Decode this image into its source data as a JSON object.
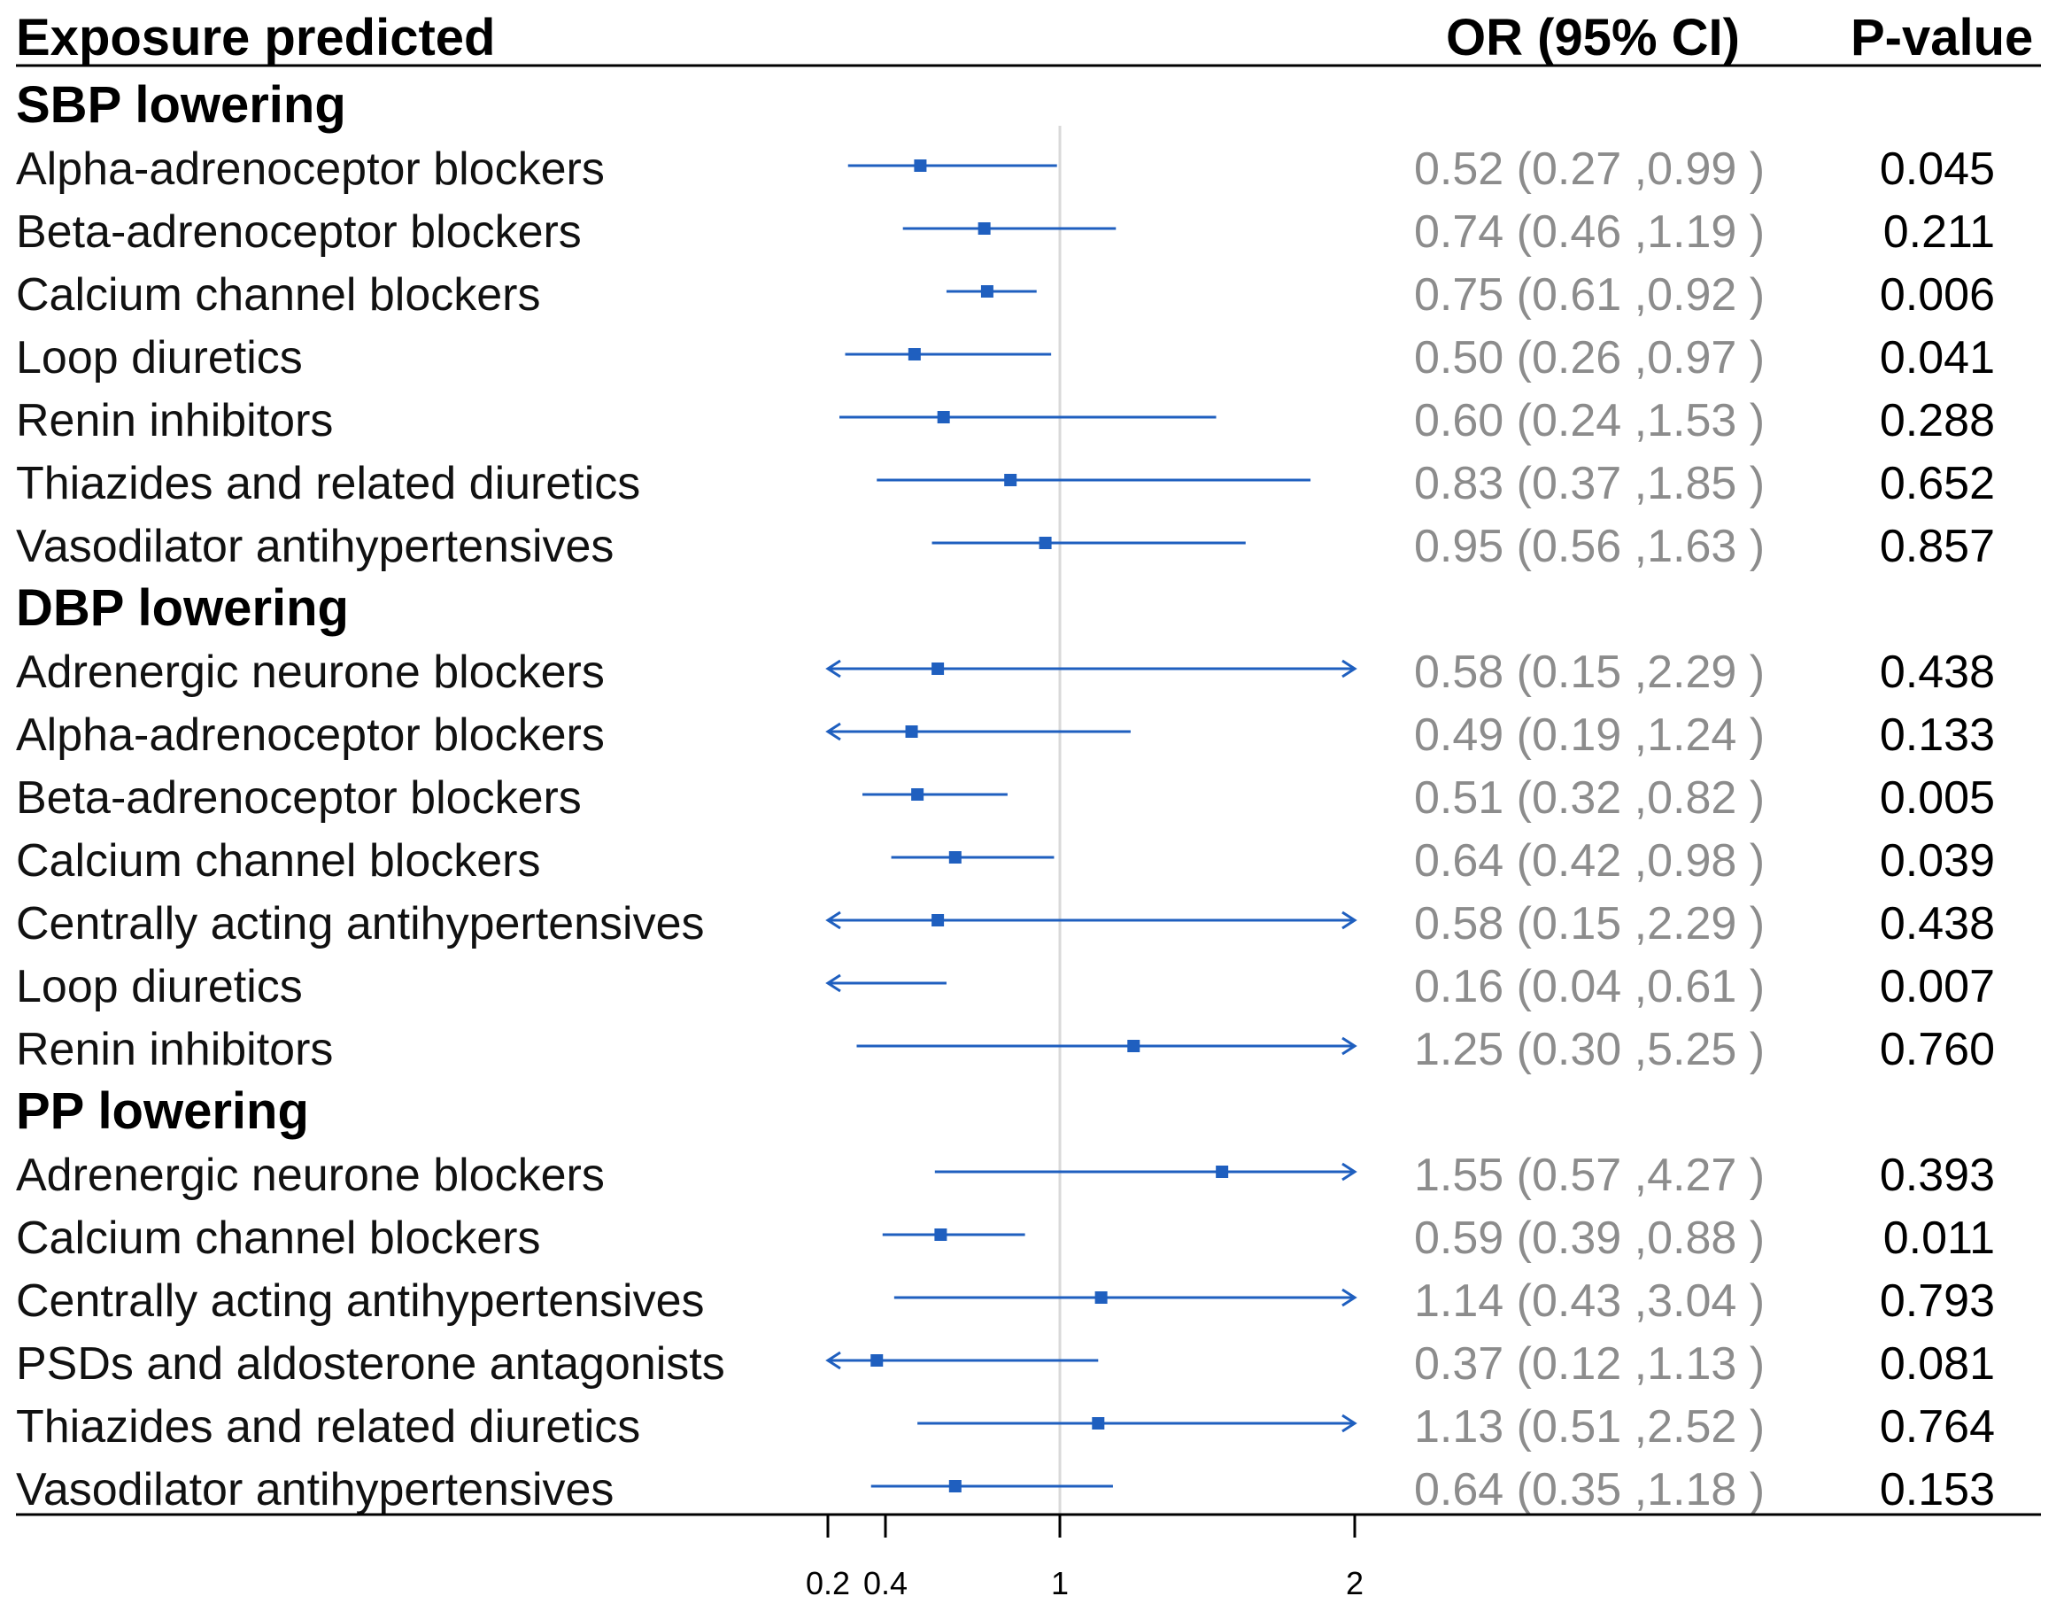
{
  "header": {
    "exposure": "Exposure predicted",
    "or": "OR (95% CI)",
    "p": "P-value"
  },
  "colors": {
    "marker": "#1f5fbf",
    "or_text": "#8c8c8c",
    "reference_line": "#d9d9d9",
    "rule": "#000000"
  },
  "chart_data": {
    "type": "forest",
    "title": "",
    "xlabel": "",
    "reference_value": 1,
    "xlim": [
      0.2,
      2
    ],
    "x_ticks": [
      0.2,
      0.4,
      1,
      2
    ],
    "x_tick_labels": [
      "0.2",
      "0.4",
      "1",
      "2"
    ],
    "groups": [
      {
        "name": "SBP lowering",
        "rows": [
          {
            "label": "Alpha-adrenoceptor blockers",
            "or": 0.52,
            "lo": 0.27,
            "hi": 0.99,
            "or_text": "0.52 (0.27 ,0.99 )",
            "p": "0.045"
          },
          {
            "label": "Beta-adrenoceptor blockers",
            "or": 0.74,
            "lo": 0.46,
            "hi": 1.19,
            "or_text": "0.74 (0.46 ,1.19 )",
            "p": "0.211"
          },
          {
            "label": "Calcium channel blockers",
            "or": 0.75,
            "lo": 0.61,
            "hi": 0.92,
            "or_text": "0.75 (0.61 ,0.92 )",
            "p": "0.006"
          },
          {
            "label": "Loop diuretics",
            "or": 0.5,
            "lo": 0.26,
            "hi": 0.97,
            "or_text": "0.50 (0.26 ,0.97 )",
            "p": "0.041"
          },
          {
            "label": "Renin inhibitors",
            "or": 0.6,
            "lo": 0.24,
            "hi": 1.53,
            "or_text": "0.60 (0.24 ,1.53 )",
            "p": "0.288"
          },
          {
            "label": "Thiazides and related diuretics",
            "or": 0.83,
            "lo": 0.37,
            "hi": 1.85,
            "or_text": "0.83 (0.37 ,1.85 )",
            "p": "0.652"
          },
          {
            "label": "Vasodilator antihypertensives",
            "or": 0.95,
            "lo": 0.56,
            "hi": 1.63,
            "or_text": "0.95 (0.56 ,1.63 )",
            "p": "0.857"
          }
        ]
      },
      {
        "name": "DBP lowering",
        "rows": [
          {
            "label": "Adrenergic neurone blockers",
            "or": 0.58,
            "lo": 0.15,
            "hi": 2.29,
            "or_text": "0.58 (0.15 ,2.29 )",
            "p": "0.438"
          },
          {
            "label": "Alpha-adrenoceptor blockers",
            "or": 0.49,
            "lo": 0.19,
            "hi": 1.24,
            "or_text": "0.49 (0.19 ,1.24 )",
            "p": "0.133"
          },
          {
            "label": "Beta-adrenoceptor blockers",
            "or": 0.51,
            "lo": 0.32,
            "hi": 0.82,
            "or_text": "0.51 (0.32 ,0.82 )",
            "p": "0.005"
          },
          {
            "label": "Calcium channel blockers",
            "or": 0.64,
            "lo": 0.42,
            "hi": 0.98,
            "or_text": "0.64 (0.42 ,0.98 )",
            "p": "0.039"
          },
          {
            "label": "Centrally acting antihypertensives",
            "or": 0.58,
            "lo": 0.15,
            "hi": 2.29,
            "or_text": "0.58 (0.15 ,2.29 )",
            "p": "0.438"
          },
          {
            "label": "Loop diuretics",
            "or": 0.16,
            "lo": 0.04,
            "hi": 0.61,
            "or_text": "0.16 (0.04 ,0.61 )",
            "p": "0.007"
          },
          {
            "label": "Renin inhibitors",
            "or": 1.25,
            "lo": 0.3,
            "hi": 5.25,
            "or_text": "1.25 (0.30 ,5.25 )",
            "p": "0.760"
          }
        ]
      },
      {
        "name": "PP lowering",
        "rows": [
          {
            "label": "Adrenergic neurone blockers",
            "or": 1.55,
            "lo": 0.57,
            "hi": 4.27,
            "or_text": "1.55 (0.57 ,4.27 )",
            "p": "0.393"
          },
          {
            "label": "Calcium channel blockers",
            "or": 0.59,
            "lo": 0.39,
            "hi": 0.88,
            "or_text": "0.59 (0.39 ,0.88 )",
            "p": "0.011"
          },
          {
            "label": "Centrally acting antihypertensives",
            "or": 1.14,
            "lo": 0.43,
            "hi": 3.04,
            "or_text": "1.14 (0.43 ,3.04 )",
            "p": "0.793"
          },
          {
            "label": "PSDs and aldosterone antagonists",
            "or": 0.37,
            "lo": 0.12,
            "hi": 1.13,
            "or_text": "0.37 (0.12 ,1.13 )",
            "p": "0.081"
          },
          {
            "label": "Thiazides and related diuretics",
            "or": 1.13,
            "lo": 0.51,
            "hi": 2.52,
            "or_text": "1.13 (0.51 ,2.52 )",
            "p": "0.764"
          },
          {
            "label": "Vasodilator antihypertensives",
            "or": 0.64,
            "lo": 0.35,
            "hi": 1.18,
            "or_text": "0.64 (0.35 ,1.18 )",
            "p": "0.153"
          }
        ]
      }
    ]
  }
}
